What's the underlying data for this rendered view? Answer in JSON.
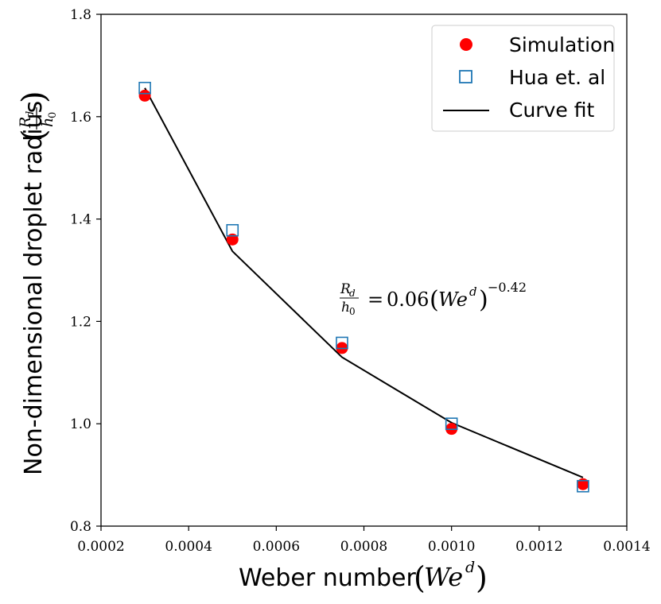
{
  "chart_data": {
    "type": "scatter",
    "xlabel": "Weber number",
    "xlabel_math": "We^d",
    "ylabel": "Non-dimensional droplet radius",
    "ylabel_math": "R_d / h_0",
    "xlim": [
      0.0002,
      0.0014
    ],
    "ylim": [
      0.8,
      1.8
    ],
    "x_ticks": [
      0.0002,
      0.0004,
      0.0006,
      0.0008,
      0.001,
      0.0012,
      0.0014
    ],
    "x_tick_labels": [
      "0.0002",
      "0.0004",
      "0.0006",
      "0.0008",
      "0.0010",
      "0.0012",
      "0.0014"
    ],
    "y_ticks": [
      0.8,
      1.0,
      1.2,
      1.4,
      1.6,
      1.8
    ],
    "y_tick_labels": [
      "0.8",
      "1.0",
      "1.2",
      "1.4",
      "1.6",
      "1.8"
    ],
    "grid": false,
    "legend_position": "top-right",
    "series": [
      {
        "name": "Simulation",
        "marker": "filled-circle",
        "color": "#ff0000",
        "x": [
          0.0003,
          0.0005,
          0.00075,
          0.001,
          0.0013
        ],
        "y": [
          1.641,
          1.36,
          1.148,
          0.99,
          0.882
        ]
      },
      {
        "name": "Hua et. al",
        "marker": "open-square",
        "color": "#1f77b4",
        "x": [
          0.0003,
          0.0005,
          0.00075,
          0.001,
          0.0013
        ],
        "y": [
          1.656,
          1.378,
          1.158,
          1.0,
          0.878
        ]
      },
      {
        "name": "Curve fit",
        "marker": "line",
        "color": "#000000",
        "x": [
          0.0003,
          0.0005,
          0.00075,
          0.001,
          0.0013
        ],
        "y": [
          1.656,
          1.337,
          1.13,
          1.002,
          0.895
        ]
      }
    ],
    "annotation": {
      "text": "R_d/h_0 = 0.06 (We^d)^-0.42",
      "coefficient": "0.06",
      "exponent": "−0.42"
    }
  }
}
